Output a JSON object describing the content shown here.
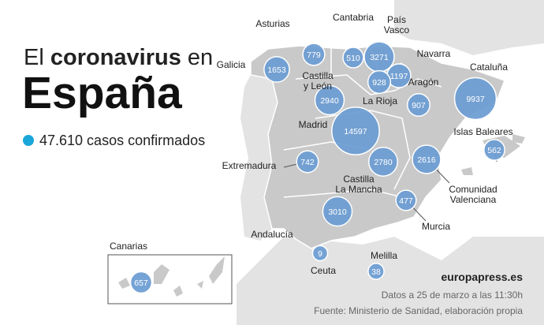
{
  "title": {
    "prefix": "El",
    "bold": "coronavirus",
    "suffix": "en",
    "main": "España"
  },
  "legend": {
    "text": "47.610 casos confirmados",
    "color": "#1aa6d8"
  },
  "bubble_color": "#6f9ed3",
  "regions": [
    {
      "name": [
        "Galicia"
      ],
      "value": 1653
    },
    {
      "name": [
        "Asturias"
      ],
      "value": 779
    },
    {
      "name": [
        "Cantabria"
      ],
      "value": 510
    },
    {
      "name": [
        "País",
        "Vasco"
      ],
      "value": 3271
    },
    {
      "name": [
        "Navarra"
      ],
      "value": 1197
    },
    {
      "name": [
        "La Rioja"
      ],
      "value": 928
    },
    {
      "name": [
        "Aragón"
      ],
      "value": 907
    },
    {
      "name": [
        "Cataluña"
      ],
      "value": 9937
    },
    {
      "name": [
        "Castilla",
        "y León"
      ],
      "value": 2940
    },
    {
      "name": [
        "Madrid"
      ],
      "value": 14597
    },
    {
      "name": [
        "Islas Baleares"
      ],
      "value": 562
    },
    {
      "name": [
        "Extremadura"
      ],
      "value": 742
    },
    {
      "name": [
        "Castilla",
        "La Mancha"
      ],
      "value": 2780
    },
    {
      "name": [
        "Comunidad",
        "Valenciana"
      ],
      "value": 2616
    },
    {
      "name": [
        "Murcia"
      ],
      "value": 477
    },
    {
      "name": [
        "Andalucía"
      ],
      "value": 3010
    },
    {
      "name": [
        "Ceuta"
      ],
      "value": 9
    },
    {
      "name": [
        "Melilla"
      ],
      "value": 38
    },
    {
      "name": [
        "Canarias"
      ],
      "value": 657
    }
  ],
  "brand": "europapress.es",
  "source": [
    "Datos a 25 de marzo a las 11:30h",
    "Fuente: Ministerio de Sanidad, elaboración propia"
  ]
}
